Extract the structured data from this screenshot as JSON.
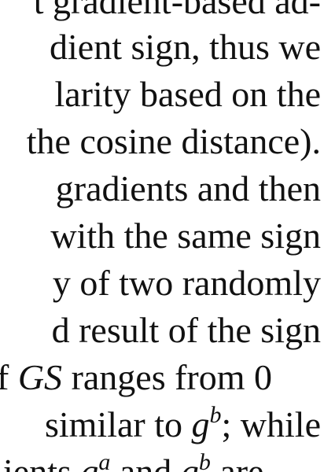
{
  "document": {
    "lines": [
      "t gradient-based ad-",
      "dient sign, thus we",
      "larity based on the",
      "the cosine distance).",
      "gradients and then",
      "with the same sign",
      "y of two randomly",
      "d result of the sign",
      "ranges from 0",
      "similar to",
      "ients"
    ],
    "line8_prefix": "f",
    "line8_symbol": "GS",
    "line9_symbol": "g",
    "line9_sup": "b",
    "line9_suffix": "; while",
    "line10_sym1": "g",
    "line10_sup1": "a",
    "line10_and": "and",
    "line10_sym2": "g",
    "line10_sup2": "b",
    "line10_end": "are"
  }
}
